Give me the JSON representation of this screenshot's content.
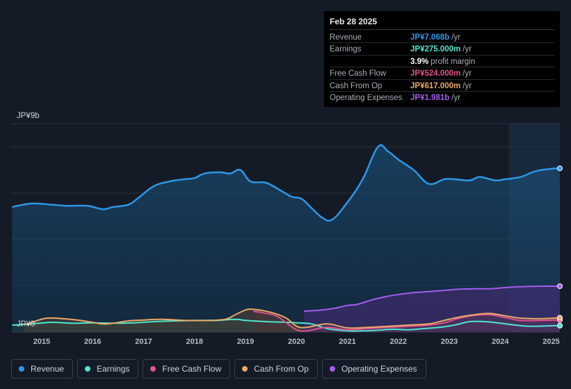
{
  "tooltip": {
    "date": "Feb 28 2025",
    "rows": [
      {
        "label": "Revenue",
        "value": "JP¥7.068b",
        "unit": "/yr",
        "color": "#2e97e6"
      },
      {
        "label": "Earnings",
        "value": "JP¥275.000m",
        "unit": "/yr",
        "color": "#4fe6cf"
      },
      {
        "label": "",
        "value": "3.9%",
        "unit": "profit margin",
        "color": "#ffffff"
      },
      {
        "label": "Free Cash Flow",
        "value": "JP¥524.000m",
        "unit": "/yr",
        "color": "#e0528c"
      },
      {
        "label": "Cash From Op",
        "value": "JP¥617.000m",
        "unit": "/yr",
        "color": "#eaa968"
      },
      {
        "label": "Operating Expenses",
        "value": "JP¥1.981b",
        "unit": "/yr",
        "color": "#a35cf0"
      }
    ]
  },
  "legend": [
    {
      "label": "Revenue",
      "color": "#2e97e6"
    },
    {
      "label": "Earnings",
      "color": "#4fe6cf"
    },
    {
      "label": "Free Cash Flow",
      "color": "#e0528c"
    },
    {
      "label": "Cash From Op",
      "color": "#eaa968"
    },
    {
      "label": "Operating Expenses",
      "color": "#a35cf0"
    }
  ],
  "chart_data": {
    "type": "area",
    "title": "",
    "ylabel_top": "JP¥9b",
    "ylabel_bottom": "JP¥0",
    "ylim": [
      0,
      9
    ],
    "xlim": [
      2014.4,
      2025.17
    ],
    "x_ticks": [
      "2015",
      "2016",
      "2017",
      "2018",
      "2019",
      "2020",
      "2021",
      "2022",
      "2023",
      "2024",
      "2025"
    ],
    "x_tick_values": [
      2015,
      2016,
      2017,
      2018,
      2019,
      2020,
      2021,
      2022,
      2023,
      2024,
      2025
    ],
    "highlight_from": 2024.17,
    "series": [
      {
        "name": "Revenue",
        "color": "#2e97e6",
        "x": [
          2014.42,
          2014.8,
          2015.2,
          2015.5,
          2015.9,
          2016.2,
          2016.4,
          2016.7,
          2016.9,
          2017.2,
          2017.5,
          2017.8,
          2018.0,
          2018.2,
          2018.5,
          2018.7,
          2018.9,
          2019.1,
          2019.4,
          2019.7,
          2019.9,
          2020.1,
          2020.3,
          2020.5,
          2020.7,
          2021.0,
          2021.3,
          2021.6,
          2021.8,
          2022.0,
          2022.3,
          2022.6,
          2022.9,
          2023.1,
          2023.4,
          2023.6,
          2023.9,
          2024.1,
          2024.4,
          2024.7,
          2025.0,
          2025.17
        ],
        "values": [
          5.4,
          5.55,
          5.5,
          5.45,
          5.45,
          5.3,
          5.4,
          5.5,
          5.8,
          6.3,
          6.5,
          6.6,
          6.65,
          6.85,
          6.9,
          6.85,
          7.0,
          6.5,
          6.45,
          6.1,
          5.85,
          5.75,
          5.35,
          4.95,
          4.85,
          5.6,
          6.6,
          8.0,
          7.8,
          7.45,
          7.0,
          6.4,
          6.6,
          6.6,
          6.55,
          6.7,
          6.55,
          6.6,
          6.7,
          6.95,
          7.05,
          7.07
        ]
      },
      {
        "name": "Earnings",
        "color": "#4fe6cf",
        "x": [
          2014.42,
          2014.8,
          2015.2,
          2015.6,
          2016.0,
          2016.4,
          2016.8,
          2017.2,
          2017.6,
          2018.0,
          2018.4,
          2018.8,
          2019.0,
          2019.4,
          2019.8,
          2020.0,
          2020.3,
          2020.6,
          2021.0,
          2021.3,
          2021.6,
          2021.9,
          2022.2,
          2022.5,
          2022.8,
          2023.1,
          2023.4,
          2023.7,
          2024.0,
          2024.3,
          2024.6,
          2025.0,
          2025.17
        ],
        "values": [
          0.3,
          0.35,
          0.42,
          0.38,
          0.4,
          0.38,
          0.4,
          0.45,
          0.48,
          0.5,
          0.5,
          0.55,
          0.5,
          0.45,
          0.42,
          0.4,
          0.35,
          0.15,
          0.05,
          0.05,
          0.08,
          0.12,
          0.1,
          0.15,
          0.2,
          0.3,
          0.45,
          0.45,
          0.38,
          0.3,
          0.25,
          0.27,
          0.275
        ]
      },
      {
        "name": "Free Cash Flow",
        "color": "#e0528c",
        "x": [
          2019.15,
          2019.3,
          2019.6,
          2019.8,
          2020.0,
          2020.2,
          2020.6,
          2021.0,
          2021.4,
          2021.8,
          2022.2,
          2022.6,
          2022.9,
          2023.2,
          2023.5,
          2023.8,
          2024.1,
          2024.4,
          2024.8,
          2025.17
        ],
        "values": [
          0.9,
          0.85,
          0.7,
          0.4,
          0.1,
          0.05,
          0.2,
          0.1,
          0.15,
          0.2,
          0.25,
          0.3,
          0.4,
          0.6,
          0.72,
          0.75,
          0.62,
          0.5,
          0.5,
          0.524
        ]
      },
      {
        "name": "Cash From Op",
        "color": "#eaa968",
        "x": [
          2014.65,
          2014.85,
          2015.1,
          2015.4,
          2015.7,
          2016.0,
          2016.2,
          2016.4,
          2016.7,
          2017.0,
          2017.4,
          2017.8,
          2018.2,
          2018.6,
          2018.8,
          2019.0,
          2019.15,
          2019.5,
          2019.8,
          2020.0,
          2020.2,
          2020.6,
          2021.0,
          2021.4,
          2021.8,
          2022.2,
          2022.6,
          2022.9,
          2023.2,
          2023.5,
          2023.8,
          2024.1,
          2024.4,
          2024.8,
          2025.17
        ],
        "values": [
          0.3,
          0.45,
          0.6,
          0.58,
          0.52,
          0.42,
          0.35,
          0.38,
          0.48,
          0.52,
          0.55,
          0.5,
          0.5,
          0.55,
          0.75,
          0.95,
          0.98,
          0.85,
          0.6,
          0.25,
          0.2,
          0.35,
          0.18,
          0.2,
          0.25,
          0.3,
          0.35,
          0.5,
          0.65,
          0.75,
          0.8,
          0.7,
          0.6,
          0.58,
          0.617
        ]
      },
      {
        "name": "Operating Expenses",
        "color": "#a35cf0",
        "x": [
          2020.15,
          2020.5,
          2020.8,
          2021.0,
          2021.2,
          2021.5,
          2021.8,
          2022.0,
          2022.3,
          2022.6,
          2022.9,
          2023.2,
          2023.5,
          2023.8,
          2024.1,
          2024.4,
          2024.8,
          2025.17
        ],
        "values": [
          0.9,
          0.95,
          1.05,
          1.15,
          1.2,
          1.4,
          1.55,
          1.62,
          1.7,
          1.75,
          1.8,
          1.85,
          1.87,
          1.87,
          1.92,
          1.96,
          1.98,
          1.981
        ]
      }
    ]
  }
}
